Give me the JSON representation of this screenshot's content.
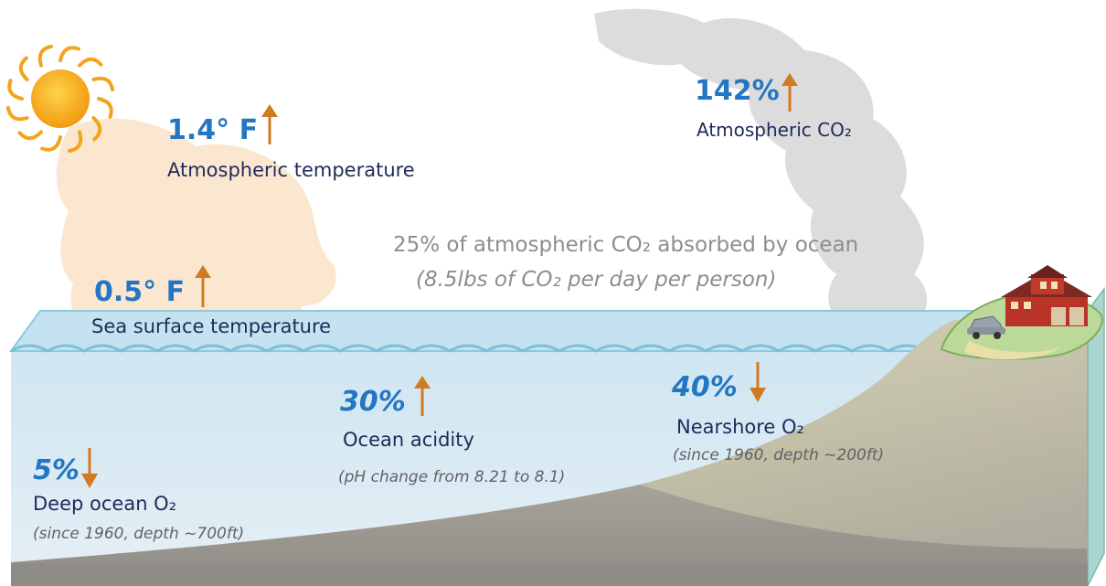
{
  "indicators": {
    "atm_temp": {
      "value": "1.4° F",
      "label": "Atmospheric temperature",
      "direction": "up"
    },
    "atm_co2": {
      "value": "142%",
      "label": "Atmospheric CO₂",
      "direction": "up"
    },
    "sst": {
      "value": "0.5° F",
      "label": "Sea surface temperature",
      "direction": "up"
    },
    "acidity": {
      "value": "30%",
      "label": "Ocean acidity",
      "note": "(pH change from 8.21 to 8.1)",
      "direction": "up"
    },
    "nearshore": {
      "value": "40%",
      "label": "Nearshore O₂",
      "note": "(since 1960, depth ~200ft)",
      "direction": "down"
    },
    "deep": {
      "value": "5%",
      "label": "Deep ocean O₂",
      "note": "(since 1960, depth ~700ft)",
      "direction": "down"
    }
  },
  "absorption": {
    "line1": "25% of atmospheric CO₂ absorbed by ocean",
    "line2": "(8.5lbs of CO₂ per day per person)"
  },
  "colors": {
    "value_blue": "#2476c4",
    "label_navy": "#1f2a5a",
    "arrow_orange": "#d07a22",
    "sun": "#f4a41c",
    "ocean": "#d6e9f3",
    "seafloor": "#a9a49a",
    "cloud": "#d3d3d3"
  }
}
